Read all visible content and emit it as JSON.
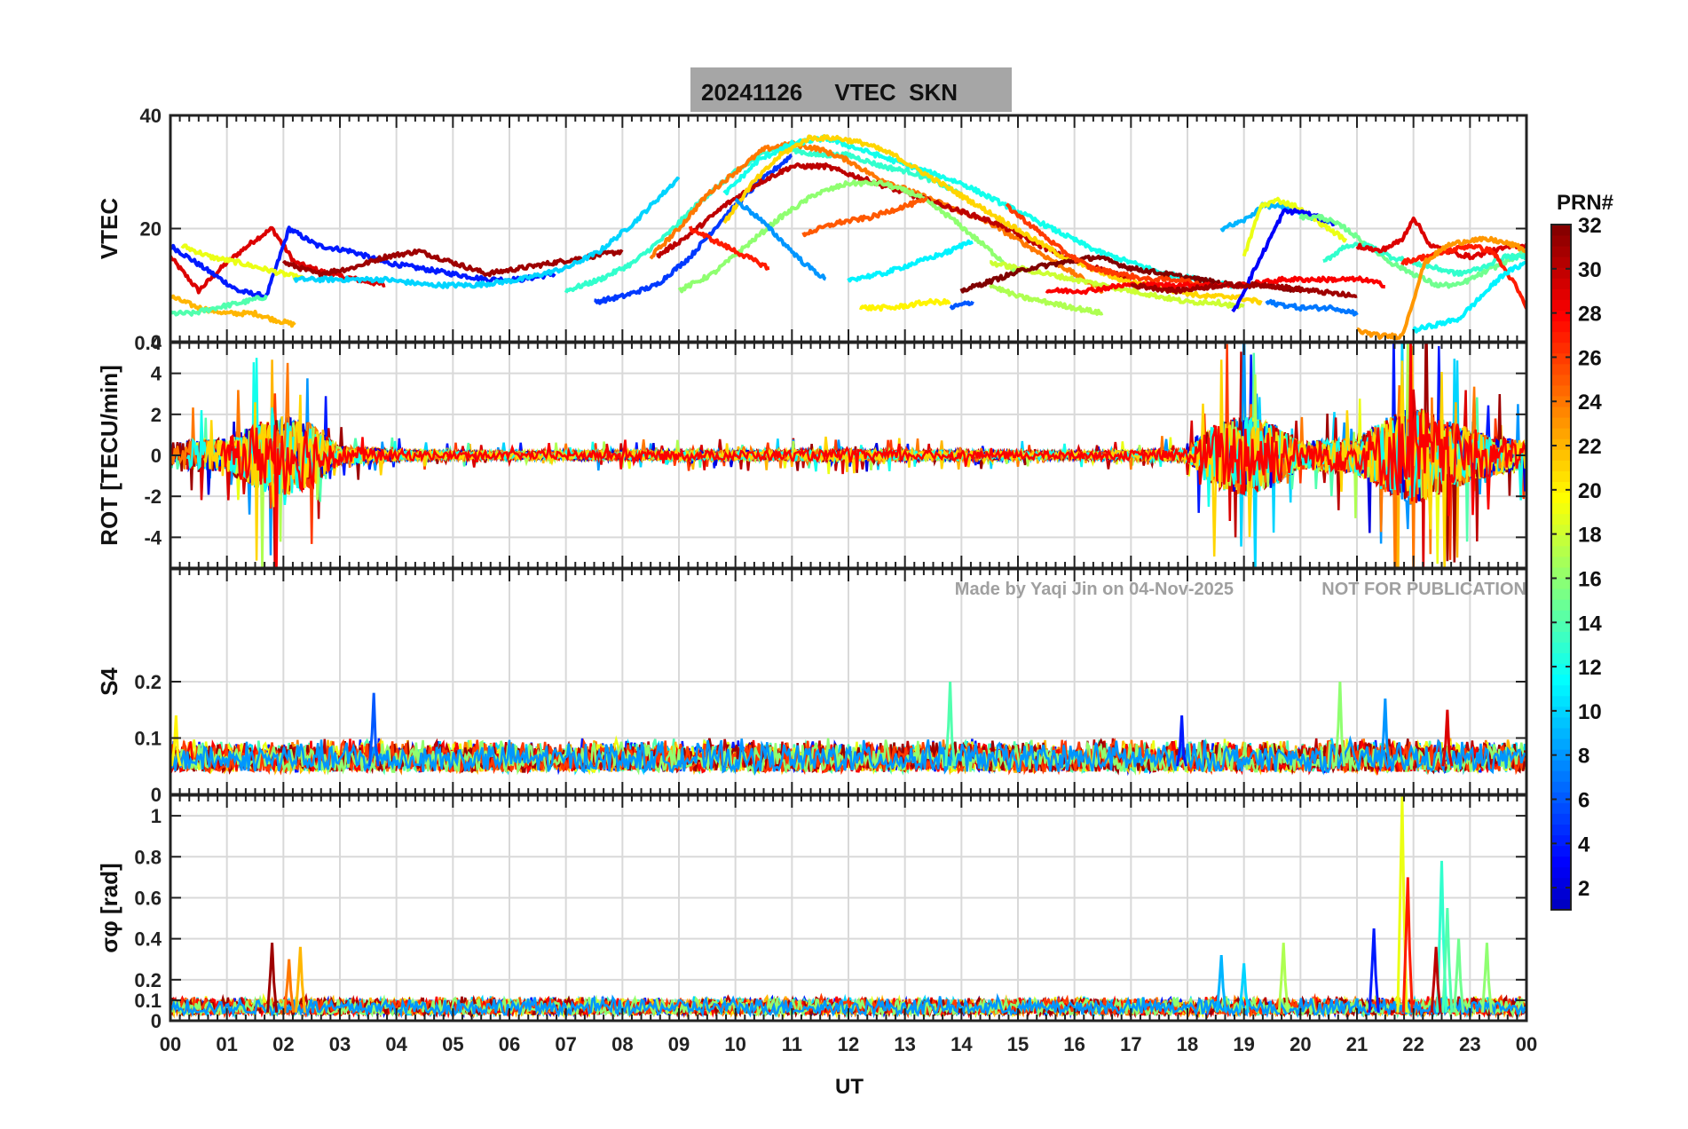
{
  "figure": {
    "title": "20241126     VTEC  SKN",
    "xlabel": "UT",
    "watermark_left": "Made by Yaqi Jin on 04-Nov-2025",
    "watermark_right": "NOT FOR PUBLICATION",
    "colorbar_title": "PRN#",
    "colorbar_ticks": [
      "2",
      "4",
      "6",
      "8",
      "10",
      "12",
      "14",
      "16",
      "18",
      "20",
      "22",
      "24",
      "26",
      "28",
      "30",
      "32"
    ],
    "colorbar_range": [
      1,
      32
    ]
  },
  "chart_data": [
    {
      "type": "line",
      "id": "vtec",
      "ylabel": "VTEC",
      "ylim": [
        0,
        40
      ],
      "yticks": [
        "0",
        "20",
        "40"
      ],
      "ytick_values": [
        0,
        20,
        40
      ],
      "xlim": [
        0,
        24
      ],
      "xtick_labels": [
        "00",
        "01",
        "02",
        "03",
        "04",
        "05",
        "06",
        "07",
        "08",
        "09",
        "10",
        "11",
        "12",
        "13",
        "14",
        "15",
        "16",
        "17",
        "18",
        "19",
        "20",
        "21",
        "22",
        "23",
        "00"
      ],
      "grid": true,
      "series": [
        {
          "prn": 29,
          "x": [
            0.0,
            0.5,
            1.0,
            1.5,
            1.8,
            2.2,
            2.8,
            3.3,
            3.8
          ],
          "y": [
            15,
            9,
            14,
            18,
            20,
            14,
            12,
            11,
            10
          ]
        },
        {
          "prn": 4,
          "x": [
            0.0,
            0.6,
            1.2,
            1.7,
            2.1,
            2.6,
            3.2,
            3.8,
            4.4,
            5.0,
            5.6,
            6.2,
            6.8
          ],
          "y": [
            17,
            13,
            9,
            8,
            20,
            17,
            16,
            14,
            13,
            12,
            11,
            11,
            12
          ]
        },
        {
          "prn": 22,
          "x": [
            0.0,
            0.5,
            1.0,
            1.5,
            1.8,
            2.2
          ],
          "y": [
            8,
            6,
            5,
            5,
            4,
            3
          ]
        },
        {
          "prn": 19,
          "x": [
            0.2,
            0.7,
            1.2,
            1.6,
            2.0,
            2.4
          ],
          "y": [
            17,
            15,
            14,
            13,
            12,
            11
          ]
        },
        {
          "prn": 14,
          "x": [
            0.0,
            0.4,
            0.8,
            1.3,
            1.7
          ],
          "y": [
            5,
            5,
            6,
            7,
            8
          ]
        },
        {
          "prn": 31,
          "x": [
            2.0,
            2.6,
            3.2,
            3.8,
            4.4,
            5.0,
            5.6,
            6.2,
            6.8,
            7.4,
            8.0
          ],
          "y": [
            14,
            12,
            13,
            15,
            16,
            14,
            12,
            13,
            14,
            15,
            16
          ]
        },
        {
          "prn": 10,
          "x": [
            2.2,
            3.0,
            3.8,
            4.6,
            5.4,
            6.2,
            7.0,
            7.6,
            8.2,
            8.6,
            9.0
          ],
          "y": [
            11,
            11,
            11,
            10,
            10,
            11,
            13,
            16,
            21,
            25,
            29
          ]
        },
        {
          "prn": 5,
          "x": [
            7.5,
            8.0,
            8.6,
            9.2,
            9.8,
            10.4,
            11.0
          ],
          "y": [
            7,
            8,
            10,
            15,
            22,
            28,
            33
          ]
        },
        {
          "prn": 13,
          "x": [
            7.0,
            7.6,
            8.2,
            8.8,
            9.4,
            10.0,
            10.6,
            11.0,
            11.4,
            12.0,
            12.6,
            13.1,
            13.6,
            14.0
          ],
          "y": [
            9,
            11,
            14,
            19,
            25,
            30,
            34,
            34,
            33,
            33,
            31,
            30,
            28,
            26
          ]
        },
        {
          "prn": 24,
          "x": [
            8.5,
            9.0,
            9.5,
            10.0,
            10.5,
            11.0,
            11.5,
            12.0,
            12.5,
            13.0,
            13.5,
            14.0,
            14.5,
            15.0,
            15.5,
            16.0,
            16.5
          ],
          "y": [
            15,
            20,
            26,
            30,
            34,
            35,
            34,
            32,
            29,
            27,
            25,
            23,
            21,
            18,
            15,
            12,
            9
          ]
        },
        {
          "prn": 30,
          "x": [
            8.6,
            9.2,
            9.8,
            10.4,
            11.0,
            11.6,
            12.2,
            12.8,
            13.4,
            14.0,
            14.6,
            15.2,
            15.8,
            16.4,
            17.0
          ],
          "y": [
            15,
            19,
            24,
            28,
            31,
            31,
            29,
            27,
            25,
            23,
            21,
            18,
            15,
            13,
            11
          ]
        },
        {
          "prn": 16,
          "x": [
            9.0,
            9.6,
            10.2,
            10.8,
            11.4,
            12.0,
            12.6,
            13.2,
            13.8,
            14.4,
            15.0
          ],
          "y": [
            9,
            12,
            17,
            22,
            26,
            28,
            28,
            26,
            22,
            17,
            12
          ]
        },
        {
          "prn": 12,
          "x": [
            9.8,
            10.4,
            11.0,
            11.6,
            12.2,
            12.8,
            13.4,
            14.0,
            14.6,
            15.2,
            15.8,
            16.4,
            17.0,
            17.6,
            18.2,
            18.8
          ],
          "y": [
            26,
            32,
            35,
            36,
            34,
            32,
            30,
            28,
            25,
            22,
            19,
            16,
            14,
            12,
            11,
            10
          ]
        },
        {
          "prn": 21,
          "x": [
            9.8,
            10.3,
            10.8,
            11.3,
            11.8,
            12.3,
            12.8,
            13.3,
            13.8,
            14.3,
            14.8,
            15.3,
            15.8,
            16.3,
            16.8,
            17.3,
            17.8,
            18.3,
            18.8,
            19.3
          ],
          "y": [
            21,
            28,
            33,
            36,
            36,
            35,
            33,
            30,
            27,
            24,
            21,
            18,
            15,
            13,
            11,
            10,
            9,
            8,
            8,
            7
          ]
        },
        {
          "prn": 27,
          "x": [
            9.2,
            9.6,
            10.0,
            10.4,
            10.6
          ],
          "y": [
            20,
            18,
            16,
            14,
            13
          ]
        },
        {
          "prn": 8,
          "x": [
            10.0,
            10.4,
            10.8,
            11.2,
            11.6
          ],
          "y": [
            25,
            22,
            18,
            14,
            11
          ]
        },
        {
          "prn": 25,
          "x": [
            11.2,
            11.8,
            12.4,
            13.0,
            13.4
          ],
          "y": [
            19,
            21,
            22,
            24,
            25
          ]
        },
        {
          "prn": 11,
          "x": [
            12.0,
            12.6,
            13.2,
            13.8,
            14.2
          ],
          "y": [
            11,
            12,
            14,
            16,
            18
          ]
        },
        {
          "prn": 20,
          "x": [
            12.2,
            12.8,
            13.4,
            13.8
          ],
          "y": [
            6,
            6,
            7,
            7
          ]
        },
        {
          "prn": 6,
          "x": [
            13.8,
            14.2
          ],
          "y": [
            6,
            7
          ]
        },
        {
          "prn": 17,
          "x": [
            14.5,
            15.0,
            15.5,
            16.0,
            16.5
          ],
          "y": [
            10,
            8,
            7,
            6,
            5
          ]
        },
        {
          "prn": 18,
          "x": [
            14.5,
            15.0,
            15.5,
            16.0,
            16.5,
            17.0,
            17.5,
            18.0,
            18.5,
            19.0
          ],
          "y": [
            14,
            13,
            12,
            11,
            10,
            9,
            8,
            7,
            7,
            6
          ]
        },
        {
          "prn": 32,
          "x": [
            14.0,
            14.6,
            15.2,
            15.8,
            16.4,
            17.0,
            17.6,
            18.2,
            18.8,
            19.4,
            20.0
          ],
          "y": [
            9,
            11,
            13,
            14,
            15,
            13,
            12,
            11,
            10,
            10,
            9
          ]
        },
        {
          "prn": 26,
          "x": [
            14.8,
            15.3,
            15.8,
            16.3,
            16.8,
            17.3,
            17.8,
            18.3
          ],
          "y": [
            24,
            20,
            16,
            13,
            12,
            11,
            11,
            10
          ]
        },
        {
          "prn": 28,
          "x": [
            15.5,
            16.2,
            16.9,
            17.6,
            18.3,
            19.0,
            19.7,
            20.4,
            21.1,
            21.5
          ],
          "y": [
            9,
            9,
            10,
            10,
            10,
            10,
            11,
            11,
            11,
            10
          ]
        },
        {
          "prn": 9,
          "x": [
            18.6,
            18.9,
            19.1,
            19.3,
            19.6,
            19.9,
            20.2,
            20.5
          ],
          "y": [
            20,
            21,
            22,
            24,
            24,
            23,
            22,
            21
          ]
        },
        {
          "prn": 19,
          "x": [
            19.0,
            19.3,
            19.6,
            19.9,
            20.2,
            20.5,
            20.8
          ],
          "y": [
            15,
            24,
            25,
            24,
            22,
            20,
            18
          ]
        },
        {
          "prn": 3,
          "x": [
            18.8,
            19.1,
            19.4,
            19.7,
            20.0,
            20.3,
            20.6
          ],
          "y": [
            5,
            11,
            17,
            23,
            23,
            22,
            21
          ]
        },
        {
          "prn": 15,
          "x": [
            20.0,
            20.4,
            20.8,
            21.2,
            21.6,
            22.0,
            22.4,
            22.8,
            23.2,
            23.6,
            24.0
          ],
          "y": [
            22,
            22,
            20,
            17,
            14,
            12,
            10,
            10,
            12,
            14,
            16
          ]
        },
        {
          "prn": 13,
          "x": [
            20.4,
            20.8,
            21.2,
            21.6,
            22.0,
            22.4,
            22.8,
            23.2,
            23.6,
            24.0
          ],
          "y": [
            14,
            17,
            17,
            15,
            14,
            13,
            12,
            13,
            15,
            15
          ]
        },
        {
          "prn": 29,
          "x": [
            21.0,
            21.4,
            21.8,
            22.0,
            22.3,
            22.6,
            23.0,
            23.4,
            23.8,
            24.0
          ],
          "y": [
            17,
            16,
            18,
            22,
            17,
            16,
            15,
            16,
            17,
            17
          ]
        },
        {
          "prn": 27,
          "x": [
            21.8,
            22.2,
            22.6,
            23.0,
            23.4,
            23.8,
            24.0
          ],
          "y": [
            14,
            15,
            16,
            17,
            16,
            10,
            6
          ]
        },
        {
          "prn": 23,
          "x": [
            21.0,
            21.4,
            21.8,
            22.2,
            22.6,
            23.0,
            23.4,
            23.8,
            24.0
          ],
          "y": [
            2,
            1,
            1,
            14,
            17,
            18,
            18,
            17,
            16
          ]
        },
        {
          "prn": 11,
          "x": [
            22.0,
            22.4,
            22.8,
            23.2,
            23.6,
            24.0
          ],
          "y": [
            2,
            3,
            4,
            8,
            12,
            14
          ]
        },
        {
          "prn": 31,
          "x": [
            17.0,
            17.8,
            18.6,
            19.4,
            20.2,
            21.0
          ],
          "y": [
            10,
            9,
            10,
            10,
            9,
            8
          ]
        },
        {
          "prn": 7,
          "x": [
            19.4,
            20.0,
            20.6,
            21.0
          ],
          "y": [
            7,
            6,
            6,
            5
          ]
        }
      ]
    },
    {
      "type": "line",
      "id": "rot",
      "ylabel": "ROT [TECU/min]",
      "ylim": [
        -5.5,
        5.5
      ],
      "yticks": [
        "-4",
        "-2",
        "0",
        "2",
        "4"
      ],
      "ytick_values": [
        -4,
        -2,
        0,
        2,
        4
      ],
      "top_tick": "0.4",
      "xlim": [
        0,
        24
      ],
      "grid": true,
      "activity_profile": {
        "x": [
          0,
          1,
          1.5,
          2,
          2.5,
          3,
          4,
          5,
          6,
          8,
          10,
          12,
          14,
          16,
          17,
          18,
          18.5,
          19,
          19.5,
          20,
          21,
          21.5,
          22,
          22.5,
          23,
          23.5,
          24
        ],
        "amplitude": [
          1.6,
          1.8,
          3.5,
          4.5,
          3.5,
          1.0,
          0.6,
          0.4,
          0.4,
          0.5,
          0.5,
          0.6,
          0.5,
          0.4,
          0.5,
          0.7,
          3.5,
          4.5,
          3.5,
          1.5,
          2.0,
          4.0,
          5.5,
          4.0,
          3.0,
          2.0,
          1.5
        ]
      }
    },
    {
      "type": "line",
      "id": "s4",
      "ylabel": "S4",
      "ylim": [
        0,
        0.4
      ],
      "yticks": [
        "0",
        "0.1",
        "0.2"
      ],
      "ytick_values": [
        0,
        0.1,
        0.2
      ],
      "xlim": [
        0,
        24
      ],
      "grid": true,
      "baseline_range": [
        0.04,
        0.1
      ],
      "spikes": [
        {
          "x": 3.6,
          "y": 0.18,
          "prn": 6
        },
        {
          "x": 13.8,
          "y": 0.2,
          "prn": 14
        },
        {
          "x": 20.7,
          "y": 0.2,
          "prn": 16
        },
        {
          "x": 21.5,
          "y": 0.17,
          "prn": 8
        },
        {
          "x": 17.9,
          "y": 0.14,
          "prn": 4
        },
        {
          "x": 22.6,
          "y": 0.15,
          "prn": 29
        },
        {
          "x": 0.1,
          "y": 0.14,
          "prn": 20
        }
      ]
    },
    {
      "type": "line",
      "id": "sigma_phi",
      "ylabel": "σφ [rad]",
      "ylim": [
        0,
        1.1
      ],
      "yticks": [
        "0",
        "0.1",
        "0.2",
        "0.4",
        "0.6",
        "0.8",
        "1"
      ],
      "ytick_values": [
        0,
        0.1,
        0.2,
        0.4,
        0.6,
        0.8,
        1
      ],
      "xlim": [
        0,
        24
      ],
      "xlabel": "UT",
      "grid": true,
      "baseline_range": [
        0.03,
        0.12
      ],
      "spikes": [
        {
          "x": 1.8,
          "y": 0.38,
          "prn": 31
        },
        {
          "x": 2.3,
          "y": 0.36,
          "prn": 22
        },
        {
          "x": 2.1,
          "y": 0.3,
          "prn": 24
        },
        {
          "x": 18.6,
          "y": 0.32,
          "prn": 9
        },
        {
          "x": 19.0,
          "y": 0.28,
          "prn": 10
        },
        {
          "x": 19.7,
          "y": 0.38,
          "prn": 17
        },
        {
          "x": 21.3,
          "y": 0.45,
          "prn": 4
        },
        {
          "x": 21.8,
          "y": 1.1,
          "prn": 19
        },
        {
          "x": 21.9,
          "y": 0.7,
          "prn": 27
        },
        {
          "x": 22.5,
          "y": 0.78,
          "prn": 13
        },
        {
          "x": 22.6,
          "y": 0.55,
          "prn": 14
        },
        {
          "x": 22.8,
          "y": 0.4,
          "prn": 15
        },
        {
          "x": 23.3,
          "y": 0.38,
          "prn": 16
        },
        {
          "x": 22.4,
          "y": 0.36,
          "prn": 30
        }
      ]
    }
  ]
}
